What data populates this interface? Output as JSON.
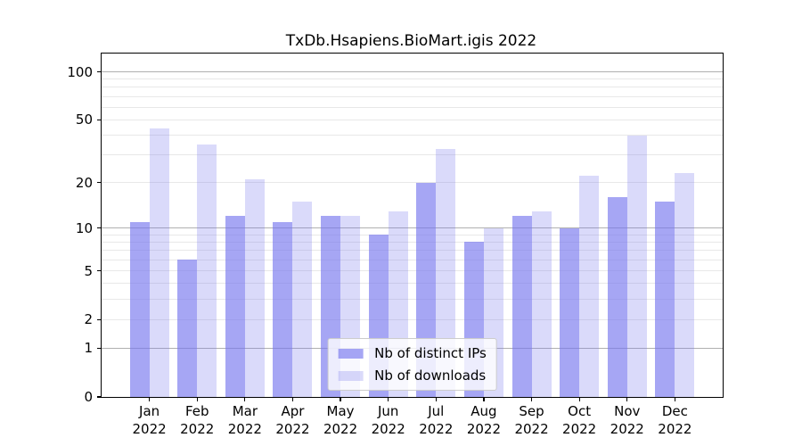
{
  "title": "TxDb.Hsapiens.BioMart.igis 2022",
  "colors": {
    "distinct_ips": "rgba(119,119,238,0.65)",
    "downloads": "rgba(119,119,238,0.27)",
    "major_gridline": "#b0b0b0",
    "minor_gridline": "#e8e8e8",
    "axis": "#000000"
  },
  "legend": {
    "position": "lower center",
    "items": [
      {
        "label": "Nb of distinct IPs"
      },
      {
        "label": "Nb of downloads"
      }
    ]
  },
  "chart_data": {
    "type": "bar",
    "title": "TxDb.Hsapiens.BioMart.igis 2022",
    "categories": [
      "Jan 2022",
      "Feb 2022",
      "Mar 2022",
      "Apr 2022",
      "May 2022",
      "Jun 2022",
      "Jul 2022",
      "Aug 2022",
      "Sep 2022",
      "Oct 2022",
      "Nov 2022",
      "Dec 2022"
    ],
    "x_tick_month": [
      "Jan",
      "Feb",
      "Mar",
      "Apr",
      "May",
      "Jun",
      "Jul",
      "Aug",
      "Sep",
      "Oct",
      "Nov",
      "Dec"
    ],
    "x_tick_year": [
      "2022",
      "2022",
      "2022",
      "2022",
      "2022",
      "2022",
      "2022",
      "2022",
      "2022",
      "2022",
      "2022",
      "2022"
    ],
    "series": [
      {
        "name": "Nb of distinct IPs",
        "color": "rgba(119,119,238,0.65)",
        "values": [
          11,
          6,
          12,
          11,
          12,
          9,
          20,
          8,
          12,
          10,
          16,
          15
        ]
      },
      {
        "name": "Nb of downloads",
        "color": "rgba(119,119,238,0.27)",
        "values": [
          44,
          35,
          21,
          15,
          12,
          13,
          33,
          10,
          13,
          22,
          40,
          23
        ]
      }
    ],
    "xlabel": "",
    "ylabel": "",
    "y_axis": {
      "scale": "log1p",
      "ticks": [
        100,
        50,
        20,
        10,
        5,
        2,
        1,
        0
      ],
      "ylim": [
        0,
        130
      ]
    },
    "gridlines": {
      "major": [
        1,
        10,
        100
      ],
      "minor": [
        2,
        3,
        4,
        5,
        6,
        7,
        8,
        9,
        20,
        30,
        40,
        50,
        60,
        70,
        80,
        90
      ]
    },
    "legend_position": "lower center",
    "grid": true
  }
}
